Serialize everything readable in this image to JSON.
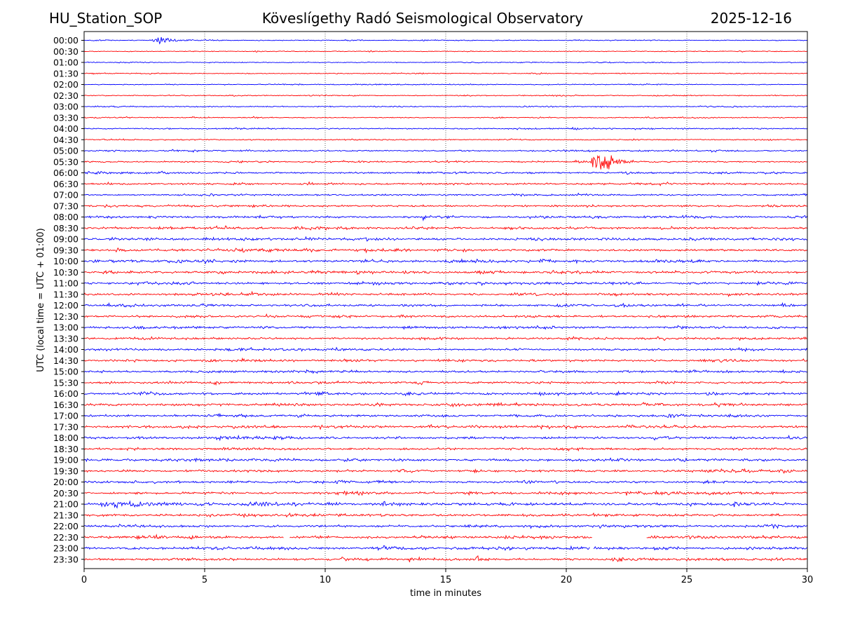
{
  "header": {
    "station": "HU_Station_SOP",
    "title": "Köveslígethy Radó Seismological Observatory",
    "date": "2025-12-16"
  },
  "chart_data": {
    "type": "line",
    "subtype": "helicorder",
    "title": "Köveslígethy Radó Seismological Observatory",
    "xlabel": "time in minutes",
    "ylabel": "UTC (local time = UTC + 01:00)",
    "xlim": [
      0,
      30
    ],
    "x_ticks": [
      0,
      5,
      10,
      15,
      20,
      25,
      30
    ],
    "x_tick_labels": [
      "0",
      "5",
      "10",
      "15",
      "20",
      "25",
      "30"
    ],
    "grid": "vertical dotted at x ticks",
    "line_labels": [
      "00:00",
      "00:30",
      "01:00",
      "01:30",
      "02:00",
      "02:30",
      "03:00",
      "03:30",
      "04:00",
      "04:30",
      "05:00",
      "05:30",
      "06:00",
      "06:30",
      "07:00",
      "07:30",
      "08:00",
      "08:30",
      "09:00",
      "09:30",
      "10:00",
      "10:30",
      "11:00",
      "11:30",
      "12:00",
      "12:30",
      "13:00",
      "13:30",
      "14:00",
      "14:30",
      "15:00",
      "15:30",
      "16:00",
      "16:30",
      "17:00",
      "17:30",
      "18:00",
      "18:30",
      "19:00",
      "19:30",
      "20:00",
      "20:30",
      "21:00",
      "21:30",
      "22:00",
      "22:30",
      "23:00",
      "23:30"
    ],
    "colors": [
      "#0000ff",
      "#ff0000"
    ],
    "noise_level": [
      0.35,
      0.3,
      0.35,
      0.35,
      0.35,
      0.35,
      0.4,
      0.35,
      0.45,
      0.4,
      0.5,
      0.55,
      0.6,
      0.6,
      0.6,
      0.7,
      0.75,
      0.75,
      0.8,
      0.85,
      0.85,
      0.85,
      0.8,
      0.8,
      0.75,
      0.75,
      0.8,
      0.75,
      0.75,
      0.75,
      0.75,
      0.75,
      0.85,
      0.85,
      0.8,
      0.85,
      0.9,
      0.8,
      0.85,
      0.85,
      0.8,
      0.85,
      1.0,
      0.8,
      0.85,
      0.8,
      0.85,
      0.85
    ],
    "events": [
      {
        "line": "00:00",
        "start_min": 2.8,
        "end_min": 4.6,
        "amplitude": 2.0
      },
      {
        "line": "05:30",
        "start_min": 21.0,
        "end_min": 23.0,
        "amplitude": 6.0
      },
      {
        "line": "08:00",
        "start_min": 14.0,
        "end_min": 14.8,
        "amplitude": 1.0
      },
      {
        "line": "10:00",
        "start_min": 20.4,
        "end_min": 20.8,
        "amplitude": 1.2
      },
      {
        "line": "15:30",
        "start_min": 13.8,
        "end_min": 14.6,
        "amplitude": 1.6
      },
      {
        "line": "21:00",
        "start_min": 0.5,
        "end_min": 6.5,
        "amplitude": 1.3
      },
      {
        "line": "23:30",
        "start_min": 16.2,
        "end_min": 16.9,
        "amplitude": 1.4
      }
    ],
    "gaps": [
      {
        "line": "22:30",
        "start_min": 8.3,
        "end_min": 8.5
      },
      {
        "line": "22:30",
        "start_min": 21.1,
        "end_min": 23.3
      },
      {
        "line": "23:00",
        "start_min": 21.0,
        "end_min": 21.1
      }
    ]
  }
}
